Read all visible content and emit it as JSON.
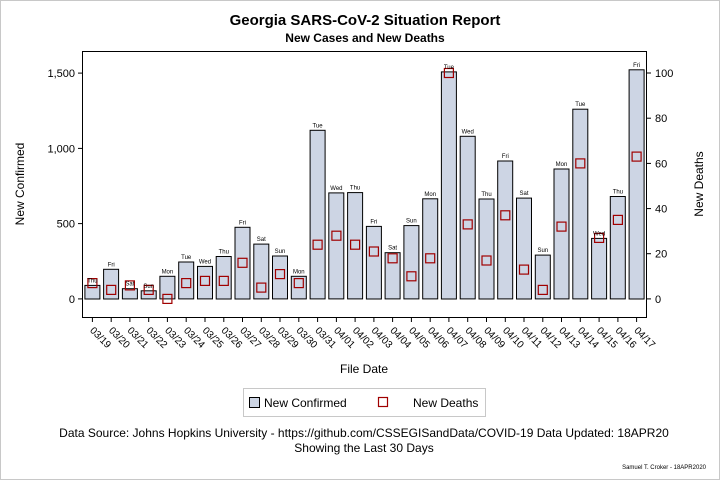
{
  "chart_data": {
    "type": "bar",
    "title": "Georgia SARS-CoV-2 Situation Report",
    "subtitle": "New Cases and New Deaths",
    "xlabel": "File Date",
    "ylabel": "New Confirmed",
    "y2label": "New Deaths",
    "ylim": [
      -120,
      1640
    ],
    "y2lim": [
      -8,
      109.3
    ],
    "yticks": [
      "0",
      "500",
      "1,000",
      "1,500"
    ],
    "y2ticks": [
      "0",
      "20",
      "40",
      "60",
      "80",
      "100"
    ],
    "categories": [
      "03/19",
      "03/20",
      "03/21",
      "03/22",
      "03/23",
      "03/24",
      "03/25",
      "03/26",
      "03/27",
      "03/28",
      "03/29",
      "03/30",
      "03/31",
      "04/01",
      "04/02",
      "04/03",
      "04/04",
      "04/05",
      "04/06",
      "04/07",
      "04/08",
      "04/09",
      "04/10",
      "04/11",
      "04/12",
      "04/13",
      "04/14",
      "04/15",
      "04/16",
      "04/17"
    ],
    "weekdays": [
      "Thu",
      "Fri",
      "Sat",
      "Sun",
      "Mon",
      "Tue",
      "Wed",
      "Thu",
      "Fri",
      "Sat",
      "Sun",
      "Mon",
      "Tue",
      "Wed",
      "Thu",
      "Fri",
      "Sat",
      "Sun",
      "Mon",
      "Tue",
      "Wed",
      "Thu",
      "Fri",
      "Sat",
      "Sun",
      "Mon",
      "Tue",
      "Wed",
      "Thu",
      "Fri"
    ],
    "series": [
      {
        "name": "New Confirmed",
        "type": "bar",
        "axis": "left",
        "color": "#cdd5e4",
        "values": [
          90,
          197,
          68,
          54,
          150,
          245,
          216,
          282,
          476,
          364,
          285,
          150,
          1120,
          704,
          706,
          482,
          307,
          487,
          665,
          1508,
          1080,
          664,
          916,
          670,
          291,
          863,
          1260,
          402,
          680,
          1522
        ]
      },
      {
        "name": "New Deaths",
        "type": "marker",
        "axis": "right",
        "color": "#a00000",
        "values": [
          7,
          4,
          6,
          4,
          0,
          7,
          8,
          8,
          16,
          5,
          11,
          7,
          24,
          28,
          24,
          21,
          18,
          10,
          18,
          100,
          33,
          17,
          37,
          13,
          4,
          32,
          60,
          27,
          35,
          63
        ]
      }
    ],
    "legend_position": "bottom",
    "grid": false
  },
  "footer": {
    "source": "Data Source: Johns Hopkins University - https://github.com/CSSEGISandData/COVID-19 Data Updated: 18APR20",
    "period": "Showing the Last 30 Days",
    "credit": "Samuel T. Croker - 18APR2020"
  }
}
